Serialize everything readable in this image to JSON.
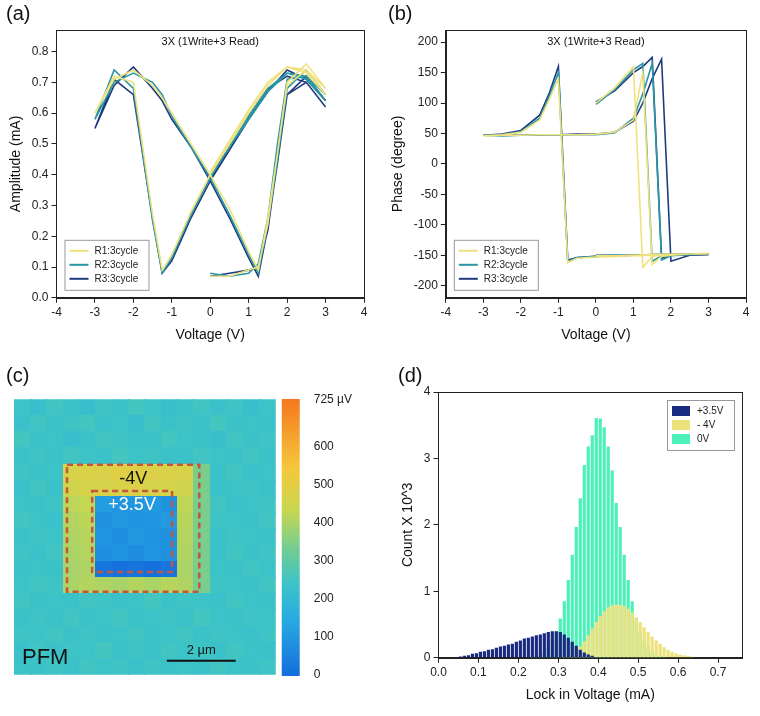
{
  "chart_data": [
    {
      "type": "line",
      "panel": "(a)",
      "title": "3X (1Write+3 Read)",
      "x_label": "Voltage (V)",
      "y_label": "Amplitude (mA)",
      "x": [
        0,
        0.5,
        1,
        1.25,
        1.5,
        1.75,
        2,
        2.5,
        3,
        2.5,
        2,
        1.5,
        1,
        0.5,
        0,
        -0.5,
        -0.75,
        -1,
        -1.25,
        -1.5,
        -2,
        -2.5,
        -3,
        -2.5,
        -2,
        -1.5,
        -1.25,
        -1,
        -0.5,
        0,
        0.5,
        1,
        1.25,
        1.5,
        1.75,
        2,
        2.5,
        3,
        2.5,
        2,
        1.5,
        1,
        0.5,
        0
      ],
      "series": [
        {
          "name": "R1:3cycle",
          "color": "#efe27e",
          "values": [
            0.07,
            0.07,
            0.09,
            0.1,
            0.24,
            0.47,
            0.69,
            0.74,
            0.66,
            0.73,
            0.75,
            0.69,
            0.6,
            0.5,
            0.4,
            0.28,
            0.21,
            0.14,
            0.09,
            0.27,
            0.7,
            0.72,
            0.6,
            0.71,
            0.74,
            0.69,
            0.65,
            0.6,
            0.5,
            0.4,
            0.29,
            0.15,
            0.09,
            0.26,
            0.47,
            0.7,
            0.76,
            0.68,
            0.74,
            0.75,
            0.7,
            0.61,
            0.51,
            0.41
          ]
        },
        {
          "name": "R2:3cycle",
          "color": "#2a97a6",
          "values": [
            0.08,
            0.07,
            0.08,
            0.11,
            0.26,
            0.5,
            0.71,
            0.72,
            0.64,
            0.71,
            0.73,
            0.67,
            0.58,
            0.49,
            0.39,
            0.27,
            0.2,
            0.13,
            0.08,
            0.25,
            0.68,
            0.74,
            0.58,
            0.7,
            0.73,
            0.7,
            0.66,
            0.59,
            0.49,
            0.39,
            0.27,
            0.14,
            0.08,
            0.24,
            0.45,
            0.68,
            0.74,
            0.66,
            0.72,
            0.73,
            0.68,
            0.59,
            0.49,
            0.4
          ]
        },
        {
          "name": "R3:3cycle",
          "color": "#1f3b7e",
          "values": [
            0.07,
            0.08,
            0.09,
            0.1,
            0.22,
            0.45,
            0.66,
            0.7,
            0.62,
            0.7,
            0.72,
            0.68,
            0.59,
            0.48,
            0.38,
            0.26,
            0.19,
            0.12,
            0.08,
            0.26,
            0.66,
            0.71,
            0.55,
            0.69,
            0.75,
            0.68,
            0.64,
            0.58,
            0.49,
            0.38,
            0.26,
            0.13,
            0.07,
            0.23,
            0.44,
            0.66,
            0.72,
            0.64,
            0.71,
            0.74,
            0.67,
            0.58,
            0.48,
            0.39
          ]
        }
      ],
      "xlim": [
        -4,
        4
      ],
      "xticks": [
        -4,
        -3,
        -2,
        -1,
        0,
        1,
        2,
        3,
        4
      ],
      "ylim": [
        0,
        0.87
      ],
      "yticks": [
        {
          "value": 0,
          "label": "0.0"
        },
        0.1,
        0.2,
        0.3,
        0.4,
        0.5,
        0.6,
        0.7,
        0.8
      ],
      "grid": false,
      "legend": "lower left"
    },
    {
      "type": "line",
      "panel": "(b)",
      "title": "3X (1Write+3 Read)",
      "x_label": "Voltage (V)",
      "y_label": "Phase (degree)",
      "x": [
        0,
        0.5,
        1,
        1.25,
        1.5,
        1.75,
        2,
        2.5,
        3,
        2.5,
        2,
        1.5,
        1,
        0.5,
        0,
        -0.5,
        -0.75,
        -1,
        -1.25,
        -1.5,
        -2,
        -2.5,
        -3,
        -2.5,
        -2,
        -1.5,
        -1.25,
        -1,
        -0.5,
        0,
        0.5,
        1,
        1.25,
        1.5,
        1.75,
        2,
        2.5,
        3,
        2.5,
        2,
        1.5,
        1,
        0.5,
        0
      ],
      "series": [
        {
          "name": "R1:3cycle",
          "color": "#efe27e",
          "values": [
            100,
            125,
            160,
            -170,
            -152,
            -150,
            -149,
            -148,
            -148,
            -148,
            -149,
            -150,
            -151,
            -152,
            -153,
            -155,
            -162,
            140,
            105,
            72,
            52,
            48,
            46,
            47,
            47,
            48,
            48,
            48,
            48,
            49,
            52,
            72,
            150,
            -165,
            -152,
            -150,
            -148,
            -147,
            -148,
            -148,
            -149,
            -150,
            -151,
            -151
          ]
        },
        {
          "name": "R2:3cycle",
          "color": "#2a97a6",
          "values": [
            98,
            122,
            155,
            165,
            -160,
            -151,
            -150,
            -149,
            -148,
            -148,
            -149,
            -150,
            -150,
            -151,
            -152,
            -154,
            -160,
            150,
            110,
            75,
            53,
            48,
            47,
            46,
            47,
            47,
            48,
            48,
            48,
            48,
            51,
            75,
            115,
            165,
            -158,
            -151,
            -149,
            -148,
            -148,
            -149,
            -149,
            -150,
            -150,
            -151
          ]
        },
        {
          "name": "R3:3cycle",
          "color": "#1f3b7e",
          "values": [
            102,
            120,
            150,
            160,
            175,
            -155,
            -150,
            -149,
            -148,
            -148,
            -149,
            -149,
            -150,
            -151,
            -152,
            -154,
            -158,
            160,
            115,
            80,
            55,
            49,
            47,
            47,
            47,
            48,
            48,
            48,
            49,
            49,
            52,
            70,
            100,
            140,
            172,
            -160,
            -150,
            -149,
            -148,
            -148,
            -149,
            -150,
            -150,
            -150
          ]
        }
      ],
      "xlim": [
        -4,
        4
      ],
      "xticks": [
        -4,
        -3,
        -2,
        -1,
        0,
        1,
        2,
        3,
        4
      ],
      "ylim": [
        -220,
        220
      ],
      "yticks": [
        -200,
        -150,
        -100,
        -50,
        0,
        50,
        100,
        150,
        200
      ],
      "grid": false,
      "legend": "lower left"
    },
    {
      "type": "heatmap",
      "panel": "(c)",
      "xlim": [
        0,
        7.6
      ],
      "ylim": [
        0,
        8.2
      ],
      "tick_labels": false,
      "cells": [
        [
          240,
          225,
          250,
          235,
          220,
          245,
          230,
          255,
          240,
          225,
          235,
          250,
          230,
          245,
          225,
          240
        ],
        [
          230,
          250,
          235,
          245,
          255,
          230,
          240,
          225,
          250,
          235,
          245,
          230,
          255,
          235,
          240,
          230
        ],
        [
          255,
          235,
          240,
          225,
          235,
          250,
          245,
          235,
          230,
          255,
          240,
          235,
          225,
          250,
          235,
          245
        ],
        [
          235,
          245,
          230,
          250,
          240,
          235,
          255,
          240,
          245,
          235,
          230,
          250,
          240,
          230,
          250,
          235
        ],
        [
          245,
          230,
          240,
          470,
          480,
          475,
          490,
          485,
          480,
          475,
          470,
          340,
          235,
          250,
          230,
          240
        ],
        [
          230,
          250,
          235,
          455,
          465,
          470,
          475,
          480,
          470,
          465,
          450,
          340,
          230,
          240,
          245,
          235
        ],
        [
          240,
          235,
          245,
          420,
          430,
          110,
          95,
          100,
          105,
          90,
          425,
          340,
          250,
          230,
          240,
          245
        ],
        [
          250,
          240,
          230,
          410,
          420,
          85,
          100,
          90,
          95,
          105,
          415,
          340,
          245,
          240,
          230,
          250
        ],
        [
          235,
          245,
          240,
          405,
          415,
          95,
          80,
          100,
          90,
          85,
          410,
          340,
          235,
          245,
          240,
          230
        ],
        [
          245,
          230,
          250,
          400,
          410,
          80,
          90,
          75,
          95,
          85,
          405,
          340,
          230,
          250,
          235,
          245
        ],
        [
          230,
          240,
          235,
          395,
          405,
          20,
          10,
          15,
          5,
          20,
          400,
          340,
          240,
          235,
          250,
          240
        ],
        [
          240,
          250,
          245,
          400,
          410,
          405,
          395,
          410,
          400,
          415,
          405,
          340,
          245,
          240,
          235,
          250
        ],
        [
          250,
          235,
          240,
          235,
          250,
          245,
          230,
          240,
          255,
          235,
          245,
          240,
          230,
          250,
          240,
          235
        ],
        [
          235,
          245,
          230,
          250,
          235,
          240,
          250,
          235,
          240,
          245,
          230,
          255,
          240,
          235,
          245,
          240
        ],
        [
          245,
          240,
          250,
          235,
          245,
          230,
          240,
          250,
          235,
          240,
          250,
          235,
          245,
          240,
          230,
          245
        ],
        [
          230,
          250,
          235,
          245,
          240,
          255,
          235,
          245,
          230,
          250,
          240,
          245,
          235,
          250,
          240,
          230
        ],
        [
          240,
          235,
          245,
          230,
          250,
          240,
          245,
          230,
          245,
          235,
          240,
          230,
          250,
          240,
          235,
          245
        ]
      ],
      "colorbar": {
        "range": [
          0,
          725
        ],
        "ticks": [
          0,
          100,
          200,
          300,
          400,
          500,
          600,
          {
            "value": 725,
            "label": "725 µV"
          }
        ]
      },
      "regions": [
        {
          "label": "-4V",
          "x": [
            1.54,
            5.38
          ],
          "y": [
            1.95,
            5.73
          ]
        },
        {
          "label": "+3.5V",
          "x": [
            2.27,
            4.59
          ],
          "y": [
            2.73,
            5.14
          ]
        }
      ],
      "annotations": [
        {
          "text": "PFM"
        }
      ],
      "scale_bar": {
        "length": 2,
        "label": "2 µm"
      }
    },
    {
      "type": "histogram",
      "panel": "(d)",
      "x_label": "Lock in Voltage (mA)",
      "y_label": "Count X 10^3",
      "bins": [
        0.03,
        0.04,
        0.05,
        0.06,
        0.07,
        0.08,
        0.09,
        0.1,
        0.11,
        0.12,
        0.13,
        0.14,
        0.15,
        0.16,
        0.17,
        0.18,
        0.19,
        0.2,
        0.21,
        0.22,
        0.23,
        0.24,
        0.25,
        0.26,
        0.27,
        0.28,
        0.29,
        0.3,
        0.31,
        0.32,
        0.33,
        0.34,
        0.35,
        0.36,
        0.37,
        0.38,
        0.39,
        0.4,
        0.41,
        0.42,
        0.43,
        0.44,
        0.45,
        0.46,
        0.47,
        0.48,
        0.49,
        0.5,
        0.51,
        0.52,
        0.53,
        0.54,
        0.55,
        0.56,
        0.57,
        0.58,
        0.59,
        0.6,
        0.61,
        0.62,
        0.63,
        0.64,
        0.65,
        0.66,
        0.67
      ],
      "series": [
        {
          "name": "+3.5V",
          "color": "#1a2a80",
          "values": [
            0,
            0.01,
            0.02,
            0.03,
            0.04,
            0.06,
            0.07,
            0.09,
            0.1,
            0.12,
            0.13,
            0.15,
            0.17,
            0.18,
            0.2,
            0.21,
            0.24,
            0.26,
            0.29,
            0.3,
            0.32,
            0.34,
            0.35,
            0.37,
            0.39,
            0.4,
            0.4,
            0.39,
            0.35,
            0.3,
            0.24,
            0.18,
            0.12,
            0.08,
            0.05,
            0.03,
            0.01,
            0,
            0,
            0,
            0,
            0,
            0,
            0,
            0,
            0,
            0,
            0,
            0,
            0,
            0,
            0,
            0,
            0,
            0,
            0,
            0,
            0,
            0,
            0,
            0,
            0,
            0,
            0
          ]
        },
        {
          "name": "- 4V",
          "color": "#ece27c",
          "values": [
            0,
            0,
            0,
            0,
            0,
            0,
            0,
            0,
            0,
            0,
            0,
            0,
            0,
            0,
            0,
            0,
            0,
            0,
            0,
            0,
            0,
            0,
            0,
            0,
            0,
            0,
            0,
            0.01,
            0.02,
            0.04,
            0.07,
            0.11,
            0.17,
            0.25,
            0.34,
            0.44,
            0.54,
            0.63,
            0.7,
            0.76,
            0.79,
            0.8,
            0.8,
            0.78,
            0.74,
            0.68,
            0.61,
            0.54,
            0.46,
            0.39,
            0.32,
            0.26,
            0.21,
            0.16,
            0.12,
            0.09,
            0.07,
            0.05,
            0.04,
            0.03,
            0.02,
            0.01,
            0.01,
            0
          ]
        },
        {
          "name": "0V",
          "color": "#4cf0b8",
          "values": [
            0,
            0,
            0,
            0,
            0,
            0,
            0,
            0,
            0,
            0,
            0,
            0,
            0,
            0,
            0,
            0,
            0,
            0,
            0,
            0.01,
            0.02,
            0.03,
            0.05,
            0.09,
            0.16,
            0.26,
            0.4,
            0.59,
            0.85,
            1.17,
            1.55,
            1.97,
            2.4,
            2.9,
            3.18,
            3.35,
            3.61,
            3.6,
            3.47,
            3.18,
            2.82,
            2.33,
            1.97,
            1.55,
            1.17,
            0.85,
            0.59,
            0.4,
            0.26,
            0.16,
            0.09,
            0.05,
            0.03,
            0.02,
            0.01,
            0,
            0,
            0,
            0,
            0,
            0,
            0,
            0,
            0
          ]
        }
      ],
      "xlim": [
        0,
        0.76
      ],
      "xticks": [
        {
          "value": 0,
          "label": "0.0"
        },
        0.1,
        0.2,
        0.3,
        0.4,
        0.5,
        0.6,
        0.7
      ],
      "ylim": [
        0,
        4
      ],
      "yticks": [
        0,
        1,
        2,
        3,
        4
      ],
      "grid": false,
      "legend": "upper right"
    }
  ]
}
